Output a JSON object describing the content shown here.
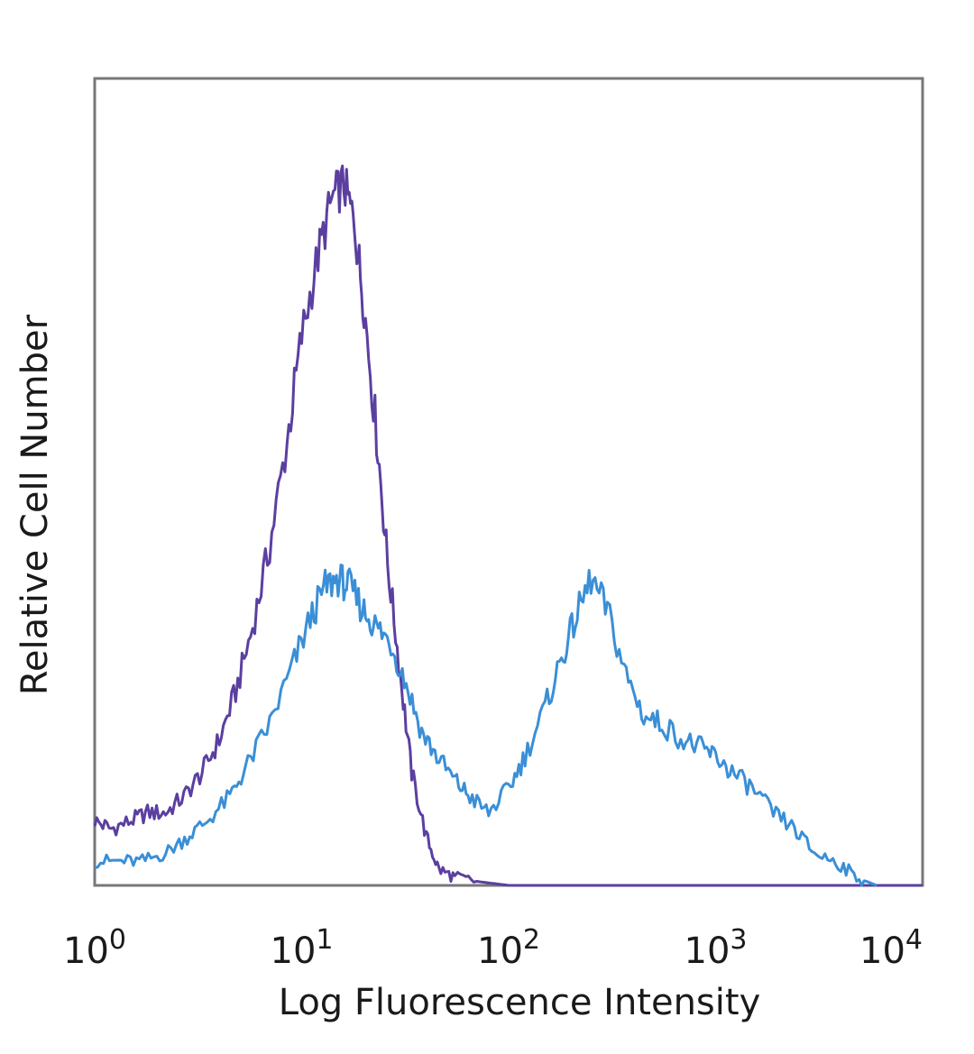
{
  "chart_data": {
    "type": "line",
    "title": "",
    "xlabel": "Log Fluorescence Intensity",
    "ylabel": "Relative Cell Number",
    "x_scale": "log",
    "xlim": [
      1,
      10000
    ],
    "ylim": [
      0,
      100
    ],
    "grid": false,
    "legend": "none",
    "x_ticks": [
      {
        "base": "10",
        "exp": "0",
        "value": 1
      },
      {
        "base": "10",
        "exp": "1",
        "value": 10
      },
      {
        "base": "10",
        "exp": "2",
        "value": 100
      },
      {
        "base": "10",
        "exp": "3",
        "value": 1000
      },
      {
        "base": "10",
        "exp": "4",
        "value": 10000
      }
    ],
    "series": [
      {
        "color": "#5b3fa0",
        "x": [
          1.0,
          1.2,
          1.5,
          1.8,
          2.2,
          2.7,
          3.3,
          4.0,
          4.8,
          5.8,
          7.0,
          8.5,
          10.0,
          12.0,
          14.0,
          16.0,
          18.0,
          20.0,
          23.0,
          26.0,
          30.0,
          34.0,
          40.0,
          46.0,
          55.0,
          70.0,
          100.0,
          1000.0,
          10000.0
        ],
        "y": [
          8,
          7,
          8,
          9,
          9,
          11,
          14,
          18,
          24,
          32,
          42,
          55,
          68,
          78,
          85,
          87,
          82,
          72,
          56,
          40,
          26,
          14,
          6,
          2,
          1,
          0.5,
          0,
          0,
          0
        ]
      },
      {
        "color": "#3a8fd6",
        "x": [
          1.0,
          1.3,
          1.7,
          2.2,
          2.8,
          3.5,
          4.5,
          5.5,
          7.0,
          9.0,
          11.0,
          13.0,
          15.0,
          17.0,
          20.0,
          23.0,
          27.0,
          32.0,
          38.0,
          45.0,
          55.0,
          65.0,
          80.0,
          100.0,
          120.0,
          150.0,
          180.0,
          210.0,
          250.0,
          300.0,
          370.0,
          450.0,
          550.0,
          700.0,
          850.0,
          1000.0,
          1200.0,
          1500.0,
          1900.0,
          2400.0,
          3000.0,
          3800.0,
          4800.0,
          6000.0
        ],
        "y": [
          3,
          3,
          3,
          4,
          6,
          8,
          11,
          15,
          20,
          27,
          33,
          37,
          38,
          37,
          34,
          32,
          30,
          25,
          19,
          16,
          13,
          11,
          9,
          12,
          16,
          22,
          28,
          33,
          38,
          34,
          26,
          21,
          20,
          18,
          17,
          16,
          14,
          12,
          9,
          7,
          4,
          3,
          1,
          0
        ]
      }
    ]
  }
}
